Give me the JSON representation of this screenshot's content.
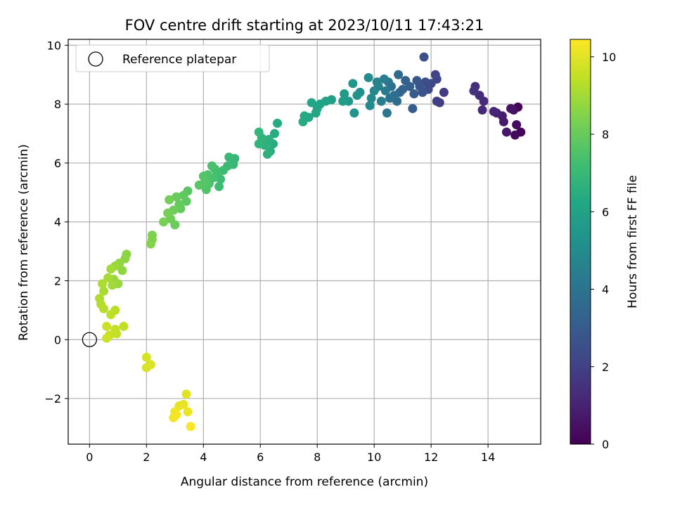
{
  "chart_data": {
    "type": "scatter",
    "title": "FOV centre drift starting at 2023/10/11 17:43:21",
    "xlabel": "Angular distance from reference (arcmin)",
    "ylabel": "Rotation from reference (arcmin)",
    "xlim": [
      -0.75,
      15.85
    ],
    "ylim": [
      -3.55,
      10.2
    ],
    "xticks": [
      0,
      2,
      4,
      6,
      8,
      10,
      12,
      14
    ],
    "yticks": [
      -2,
      0,
      2,
      4,
      6,
      8,
      10
    ],
    "grid": true,
    "legend": {
      "position": "top-left",
      "entries": [
        "Reference platepar"
      ]
    },
    "reference_point": {
      "x": 0,
      "y": 0,
      "label": "Reference platepar"
    },
    "colorbar": {
      "label": "Hours from first FF file",
      "min": 0,
      "max": 10.45,
      "ticks": [
        0,
        2,
        4,
        6,
        8,
        10
      ],
      "colormap": "viridis"
    },
    "points": [
      {
        "x": 15.05,
        "y": 7.9,
        "c": 0.05
      },
      {
        "x": 15.15,
        "y": 7.05,
        "c": 0.15
      },
      {
        "x": 14.95,
        "y": 6.95,
        "c": 0.25
      },
      {
        "x": 15.0,
        "y": 7.3,
        "c": 0.35
      },
      {
        "x": 14.9,
        "y": 7.8,
        "c": 0.45
      },
      {
        "x": 14.8,
        "y": 7.85,
        "c": 0.55
      },
      {
        "x": 14.65,
        "y": 7.05,
        "c": 0.65
      },
      {
        "x": 14.55,
        "y": 7.4,
        "c": 0.75
      },
      {
        "x": 14.5,
        "y": 7.6,
        "c": 0.85
      },
      {
        "x": 14.3,
        "y": 7.7,
        "c": 0.95
      },
      {
        "x": 14.2,
        "y": 7.75,
        "c": 1.05
      },
      {
        "x": 13.8,
        "y": 7.8,
        "c": 1.15
      },
      {
        "x": 13.85,
        "y": 8.1,
        "c": 1.25
      },
      {
        "x": 13.7,
        "y": 8.3,
        "c": 1.35
      },
      {
        "x": 13.55,
        "y": 8.6,
        "c": 1.45
      },
      {
        "x": 13.5,
        "y": 8.45,
        "c": 1.55
      },
      {
        "x": 12.45,
        "y": 8.4,
        "c": 1.75
      },
      {
        "x": 12.3,
        "y": 8.05,
        "c": 1.85
      },
      {
        "x": 12.2,
        "y": 8.1,
        "c": 1.95
      },
      {
        "x": 12.15,
        "y": 9.0,
        "c": 2.05
      },
      {
        "x": 12.2,
        "y": 8.85,
        "c": 2.15
      },
      {
        "x": 12.0,
        "y": 8.7,
        "c": 2.25
      },
      {
        "x": 11.9,
        "y": 8.5,
        "c": 2.35
      },
      {
        "x": 11.8,
        "y": 8.75,
        "c": 2.45
      },
      {
        "x": 11.75,
        "y": 9.6,
        "c": 2.55
      },
      {
        "x": 11.7,
        "y": 8.4,
        "c": 2.65
      },
      {
        "x": 11.6,
        "y": 8.6,
        "c": 2.75
      },
      {
        "x": 11.5,
        "y": 8.8,
        "c": 2.85
      },
      {
        "x": 11.4,
        "y": 8.35,
        "c": 2.95
      },
      {
        "x": 11.35,
        "y": 7.85,
        "c": 3.05
      },
      {
        "x": 11.25,
        "y": 8.6,
        "c": 3.15
      },
      {
        "x": 11.1,
        "y": 8.8,
        "c": 3.25
      },
      {
        "x": 11.0,
        "y": 8.5,
        "c": 3.35
      },
      {
        "x": 10.9,
        "y": 8.4,
        "c": 3.45
      },
      {
        "x": 10.85,
        "y": 9.0,
        "c": 3.55
      },
      {
        "x": 10.8,
        "y": 8.1,
        "c": 3.65
      },
      {
        "x": 10.7,
        "y": 8.3,
        "c": 3.75
      },
      {
        "x": 10.6,
        "y": 8.6,
        "c": 3.85
      },
      {
        "x": 10.55,
        "y": 8.2,
        "c": 3.95
      },
      {
        "x": 10.5,
        "y": 8.75,
        "c": 4.05
      },
      {
        "x": 10.45,
        "y": 7.7,
        "c": 4.15
      },
      {
        "x": 10.4,
        "y": 8.45,
        "c": 4.25
      },
      {
        "x": 10.35,
        "y": 8.85,
        "c": 4.35
      },
      {
        "x": 10.25,
        "y": 8.1,
        "c": 4.45
      },
      {
        "x": 10.15,
        "y": 8.6,
        "c": 4.55
      },
      {
        "x": 10.1,
        "y": 8.75,
        "c": 4.65
      },
      {
        "x": 10.0,
        "y": 8.45,
        "c": 4.75
      },
      {
        "x": 9.9,
        "y": 8.2,
        "c": 4.85
      },
      {
        "x": 9.85,
        "y": 7.95,
        "c": 4.95
      },
      {
        "x": 9.8,
        "y": 8.9,
        "c": 5.05
      },
      {
        "x": 9.5,
        "y": 8.4,
        "c": 5.2
      },
      {
        "x": 9.4,
        "y": 8.3,
        "c": 5.3
      },
      {
        "x": 9.3,
        "y": 7.7,
        "c": 5.4
      },
      {
        "x": 9.25,
        "y": 8.7,
        "c": 5.5
      },
      {
        "x": 9.1,
        "y": 8.1,
        "c": 5.6
      },
      {
        "x": 8.95,
        "y": 8.35,
        "c": 5.7
      },
      {
        "x": 8.9,
        "y": 8.1,
        "c": 5.8
      },
      {
        "x": 8.5,
        "y": 8.15,
        "c": 5.9
      },
      {
        "x": 8.3,
        "y": 8.1,
        "c": 6.0
      },
      {
        "x": 8.1,
        "y": 8.0,
        "c": 6.05
      },
      {
        "x": 8.0,
        "y": 7.85,
        "c": 6.1
      },
      {
        "x": 7.95,
        "y": 7.7,
        "c": 6.15
      },
      {
        "x": 7.8,
        "y": 8.05,
        "c": 6.2
      },
      {
        "x": 7.7,
        "y": 7.55,
        "c": 6.25
      },
      {
        "x": 7.55,
        "y": 7.6,
        "c": 6.3
      },
      {
        "x": 7.5,
        "y": 7.4,
        "c": 6.35
      },
      {
        "x": 6.6,
        "y": 7.35,
        "c": 6.4
      },
      {
        "x": 6.5,
        "y": 7.0,
        "c": 6.45
      },
      {
        "x": 6.45,
        "y": 6.65,
        "c": 6.5
      },
      {
        "x": 6.35,
        "y": 6.4,
        "c": 6.55
      },
      {
        "x": 6.3,
        "y": 6.8,
        "c": 6.6
      },
      {
        "x": 6.25,
        "y": 6.3,
        "c": 6.65
      },
      {
        "x": 6.15,
        "y": 6.6,
        "c": 6.7
      },
      {
        "x": 6.05,
        "y": 6.85,
        "c": 6.75
      },
      {
        "x": 5.95,
        "y": 6.65,
        "c": 6.8
      },
      {
        "x": 5.95,
        "y": 7.05,
        "c": 6.85
      },
      {
        "x": 5.1,
        "y": 6.15,
        "c": 6.9
      },
      {
        "x": 5.05,
        "y": 5.95,
        "c": 6.95
      },
      {
        "x": 4.9,
        "y": 6.2,
        "c": 7.0
      },
      {
        "x": 4.85,
        "y": 5.9,
        "c": 7.05
      },
      {
        "x": 4.7,
        "y": 5.75,
        "c": 7.1
      },
      {
        "x": 4.6,
        "y": 5.45,
        "c": 7.15
      },
      {
        "x": 4.55,
        "y": 5.2,
        "c": 7.2
      },
      {
        "x": 4.5,
        "y": 5.65,
        "c": 7.25
      },
      {
        "x": 4.4,
        "y": 5.8,
        "c": 7.3
      },
      {
        "x": 4.35,
        "y": 5.5,
        "c": 7.35
      },
      {
        "x": 4.3,
        "y": 5.9,
        "c": 7.4
      },
      {
        "x": 4.2,
        "y": 5.3,
        "c": 7.45
      },
      {
        "x": 4.15,
        "y": 5.6,
        "c": 7.5
      },
      {
        "x": 4.1,
        "y": 5.1,
        "c": 7.55
      },
      {
        "x": 4.05,
        "y": 5.35,
        "c": 7.6
      },
      {
        "x": 4.0,
        "y": 5.55,
        "c": 7.65
      },
      {
        "x": 3.85,
        "y": 5.25,
        "c": 7.7
      },
      {
        "x": 3.45,
        "y": 5.05,
        "c": 7.75
      },
      {
        "x": 3.4,
        "y": 4.7,
        "c": 7.8
      },
      {
        "x": 3.3,
        "y": 4.9,
        "c": 7.85
      },
      {
        "x": 3.2,
        "y": 4.45,
        "c": 7.9
      },
      {
        "x": 3.15,
        "y": 4.6,
        "c": 7.95
      },
      {
        "x": 3.05,
        "y": 4.85,
        "c": 8.0
      },
      {
        "x": 3.0,
        "y": 3.9,
        "c": 8.05
      },
      {
        "x": 2.95,
        "y": 4.4,
        "c": 8.1
      },
      {
        "x": 2.85,
        "y": 4.1,
        "c": 8.15
      },
      {
        "x": 2.8,
        "y": 4.75,
        "c": 8.2
      },
      {
        "x": 2.75,
        "y": 4.3,
        "c": 8.25
      },
      {
        "x": 2.6,
        "y": 4.0,
        "c": 8.3
      },
      {
        "x": 2.2,
        "y": 3.55,
        "c": 8.4
      },
      {
        "x": 2.2,
        "y": 3.4,
        "c": 8.45
      },
      {
        "x": 2.15,
        "y": 3.25,
        "c": 8.5
      },
      {
        "x": 1.3,
        "y": 2.9,
        "c": 8.6
      },
      {
        "x": 1.25,
        "y": 2.75,
        "c": 8.65
      },
      {
        "x": 1.15,
        "y": 2.35,
        "c": 8.7
      },
      {
        "x": 1.05,
        "y": 2.6,
        "c": 8.75
      },
      {
        "x": 1.0,
        "y": 1.9,
        "c": 8.8
      },
      {
        "x": 0.9,
        "y": 2.5,
        "c": 8.85
      },
      {
        "x": 0.85,
        "y": 2.05,
        "c": 8.9
      },
      {
        "x": 0.8,
        "y": 1.85,
        "c": 8.95
      },
      {
        "x": 0.75,
        "y": 2.4,
        "c": 9.0
      },
      {
        "x": 0.65,
        "y": 2.1,
        "c": 9.05
      },
      {
        "x": 0.5,
        "y": 1.65,
        "c": 9.1
      },
      {
        "x": 0.45,
        "y": 1.9,
        "c": 9.15
      },
      {
        "x": 0.35,
        "y": 1.4,
        "c": 9.2
      },
      {
        "x": 0.4,
        "y": 1.2,
        "c": 9.25
      },
      {
        "x": 0.5,
        "y": 1.05,
        "c": 9.3
      },
      {
        "x": 0.9,
        "y": 1.0,
        "c": 9.35
      },
      {
        "x": 0.75,
        "y": 0.85,
        "c": 9.4
      },
      {
        "x": 1.2,
        "y": 0.45,
        "c": 9.45
      },
      {
        "x": 0.9,
        "y": 0.35,
        "c": 9.5
      },
      {
        "x": 0.95,
        "y": 0.2,
        "c": 9.55
      },
      {
        "x": 0.7,
        "y": 0.15,
        "c": 9.6
      },
      {
        "x": 0.6,
        "y": 0.45,
        "c": 9.65
      },
      {
        "x": 0.6,
        "y": 0.05,
        "c": 9.7
      },
      {
        "x": 2.0,
        "y": -0.6,
        "c": 9.8
      },
      {
        "x": 2.0,
        "y": -0.95,
        "c": 9.85
      },
      {
        "x": 2.15,
        "y": -0.85,
        "c": 9.9
      },
      {
        "x": 3.4,
        "y": -1.85,
        "c": 10.0
      },
      {
        "x": 3.3,
        "y": -2.2,
        "c": 10.05
      },
      {
        "x": 3.15,
        "y": -2.25,
        "c": 10.1
      },
      {
        "x": 3.45,
        "y": -2.45,
        "c": 10.15
      },
      {
        "x": 3.0,
        "y": -2.45,
        "c": 10.2
      },
      {
        "x": 2.95,
        "y": -2.65,
        "c": 10.25
      },
      {
        "x": 3.05,
        "y": -2.55,
        "c": 10.3
      },
      {
        "x": 3.55,
        "y": -2.95,
        "c": 10.4
      }
    ]
  }
}
